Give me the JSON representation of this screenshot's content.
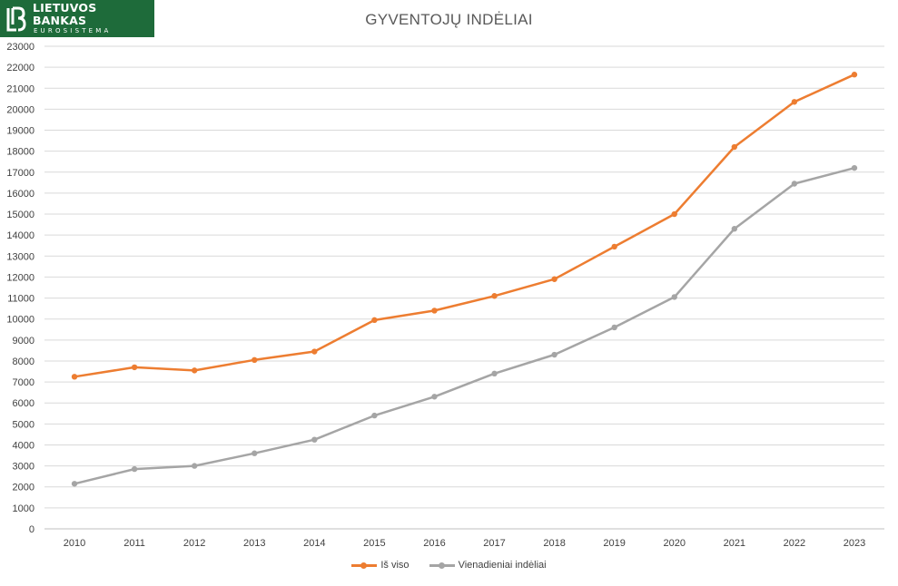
{
  "logo": {
    "name": "LIETUVOS BANKAS",
    "subtitle": "EUROSISTEMA",
    "color": "#1e6b3a"
  },
  "chart_data": {
    "type": "line",
    "title": "GYVENTOJŲ INDĖLIAI",
    "xlabel": "",
    "ylabel": "",
    "categories": [
      "2010",
      "2011",
      "2012",
      "2013",
      "2014",
      "2015",
      "2016",
      "2017",
      "2018",
      "2019",
      "2020",
      "2021",
      "2022",
      "2023"
    ],
    "ylim": [
      0,
      23000
    ],
    "ytick_step": 1000,
    "grid": true,
    "legend_position": "bottom",
    "series": [
      {
        "name": "Iš viso",
        "color": "#ed7d31",
        "values": [
          7250,
          7700,
          7550,
          8050,
          8450,
          9950,
          10400,
          11100,
          11900,
          13450,
          15000,
          18200,
          20350,
          21650
        ]
      },
      {
        "name": "Vienadieniai indėliai",
        "color": "#a5a5a5",
        "values": [
          2150,
          2850,
          3000,
          3600,
          4250,
          5400,
          6300,
          7400,
          8300,
          9600,
          11050,
          14300,
          16450,
          17200
        ]
      }
    ]
  }
}
